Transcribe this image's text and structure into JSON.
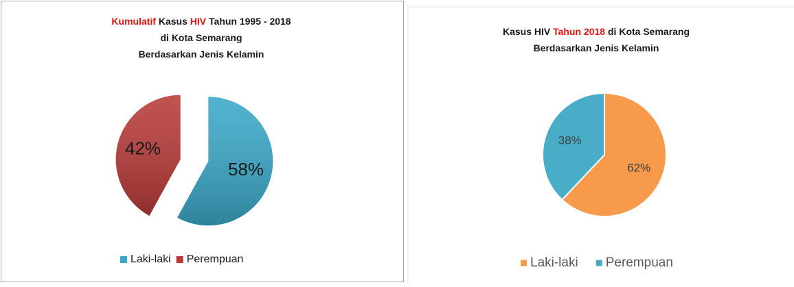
{
  "chart_data": [
    {
      "type": "pie",
      "title_lines": [
        [
          {
            "text": "Kumulatif",
            "color": "#e3140f"
          },
          {
            "text": " Kasus ",
            "color": "#1a1a1a"
          },
          {
            "text": "HIV",
            "color": "#e3140f"
          },
          {
            "text": " Tahun 1995 - 2018",
            "color": "#1a1a1a"
          }
        ],
        [
          {
            "text": "di Kota Semarang",
            "color": "#1a1a1a"
          }
        ],
        [
          {
            "text": "Berdasarkan Jenis Kelamin",
            "color": "#1a1a1a"
          }
        ]
      ],
      "categories": [
        "Laki-laki",
        "Perempuan"
      ],
      "values": [
        58,
        42
      ],
      "value_labels": [
        "58%",
        "42%"
      ],
      "colors": [
        "#3aa8c8",
        "#b83a38"
      ],
      "exploded": true,
      "legend": "bottom"
    },
    {
      "type": "pie",
      "title_lines": [
        [
          {
            "text": "Kasus HIV ",
            "color": "#1a1a1a"
          },
          {
            "text": "Tahun 2018",
            "color": "#e3140f"
          },
          {
            "text": " di Kota Semarang",
            "color": "#1a1a1a"
          }
        ],
        [
          {
            "text": "Berdasarkan Jenis Kelamin",
            "color": "#1a1a1a"
          }
        ]
      ],
      "categories": [
        "Laki-laki",
        "Perempuan"
      ],
      "values": [
        62,
        38
      ],
      "value_labels": [
        "62%",
        "38%"
      ],
      "colors": [
        "#f79a4b",
        "#4aadc8"
      ],
      "exploded": false,
      "legend": "bottom"
    }
  ]
}
